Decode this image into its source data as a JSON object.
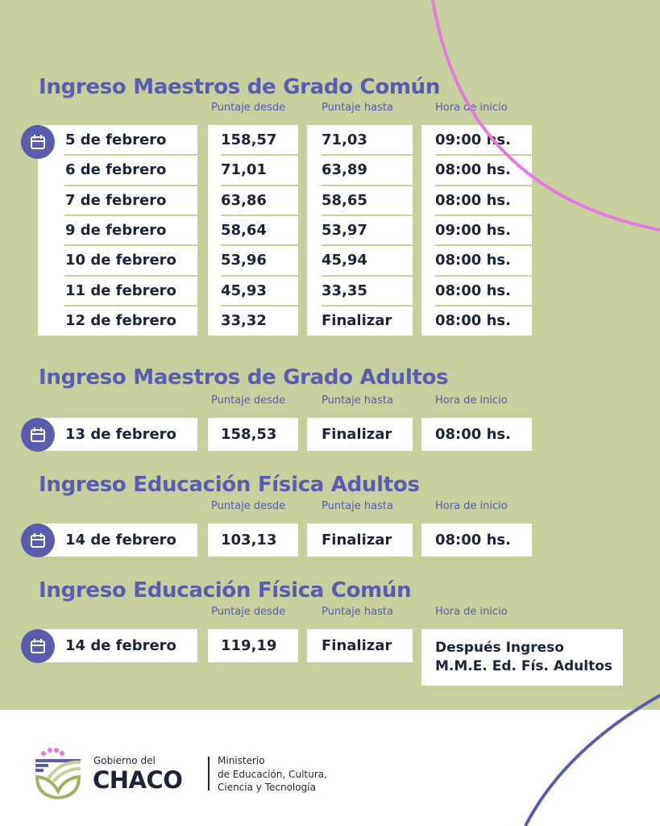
{
  "colors": {
    "background": "#c6cf9d",
    "accent": "#5a5cb0",
    "text": "#1c2436",
    "arc_pink": "#e07be0",
    "arc_blue": "#5a5cb0"
  },
  "headers": {
    "desde": "Puntaje desde",
    "hasta": "Puntaje hasta",
    "hora": "Hora de inicio"
  },
  "sections": [
    {
      "title": "Ingreso Maestros de Grado Común",
      "rows": [
        {
          "fecha": "5 de febrero",
          "desde": "158,57",
          "hasta": "71,03",
          "hora": "09:00 hs."
        },
        {
          "fecha": "6 de febrero",
          "desde": "71,01",
          "hasta": "63,89",
          "hora": "08:00 hs."
        },
        {
          "fecha": "7 de febrero",
          "desde": "63,86",
          "hasta": "58,65",
          "hora": "08:00 hs."
        },
        {
          "fecha": "9 de febrero",
          "desde": "58,64",
          "hasta": "53,97",
          "hora": "09:00 hs."
        },
        {
          "fecha": "10 de febrero",
          "desde": "53,96",
          "hasta": "45,94",
          "hora": "08:00 hs."
        },
        {
          "fecha": "11 de febrero",
          "desde": "45,93",
          "hasta": "33,35",
          "hora": "08:00 hs."
        },
        {
          "fecha": "12 de febrero",
          "desde": "33,32",
          "hasta": "Finalizar",
          "hora": "08:00 hs."
        }
      ]
    },
    {
      "title": "Ingreso Maestros de Grado Adultos",
      "rows": [
        {
          "fecha": "13 de febrero",
          "desde": "158,53",
          "hasta": "Finalizar",
          "hora": "08:00 hs."
        }
      ]
    },
    {
      "title": "Ingreso Educación Física Adultos",
      "rows": [
        {
          "fecha": "14 de febrero",
          "desde": "103,13",
          "hasta": "Finalizar",
          "hora": "08:00 hs."
        }
      ]
    },
    {
      "title": "Ingreso Educación Física Común",
      "rows": [
        {
          "fecha": "14 de febrero",
          "desde": "119,19",
          "hasta": "Finalizar",
          "hora": "Después Ingreso M.M.E. Ed. Fís. Adultos"
        }
      ]
    }
  ],
  "footer": {
    "gov_small": "Gobierno del",
    "gov_big": "CHACO",
    "ministry_1": "Ministerio",
    "ministry_2": "de Educación, Cultura,",
    "ministry_3": "Ciencia y Tecnología"
  },
  "icons": {
    "calendar": "calendar-icon",
    "logo": "chaco-logo"
  }
}
